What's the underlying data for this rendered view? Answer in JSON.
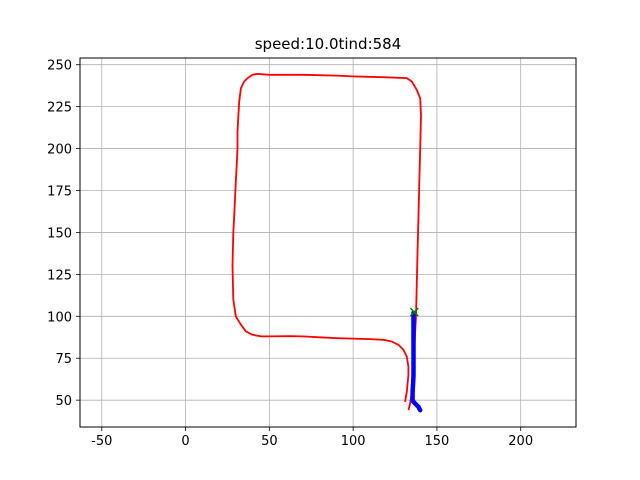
{
  "chart_data": {
    "type": "line",
    "title": "speed:10.0tind:584",
    "xlabel": "",
    "ylabel": "",
    "xlim": [
      -63,
      233
    ],
    "ylim": [
      34,
      254
    ],
    "xticks": [
      -50,
      0,
      50,
      100,
      150,
      200
    ],
    "yticks": [
      50,
      75,
      100,
      125,
      150,
      175,
      200,
      225,
      250
    ],
    "grid": true,
    "colors": {
      "course": "#ff0000",
      "trajectory": "#0000ff",
      "target": "#008000"
    },
    "series": [
      {
        "style": "red-line",
        "x": [
          133,
          134,
          135,
          136,
          136,
          136.5,
          137,
          137.5,
          138,
          138.5,
          139,
          139.5,
          140,
          140.5,
          140,
          138,
          135,
          132,
          120,
          100,
          90,
          70,
          60,
          50,
          43,
          40,
          37,
          35,
          33,
          32,
          31.5,
          31,
          31,
          30.5,
          30,
          29.5,
          29,
          28.5,
          28,
          28.5,
          30,
          33,
          36,
          40,
          45,
          50,
          62,
          70,
          80,
          90,
          100,
          110,
          118,
          123,
          127,
          130,
          132,
          133,
          133,
          132.5,
          132,
          131.5,
          131
        ],
        "y": [
          44,
          48,
          55,
          60,
          70,
          80,
          90,
          100,
          120,
          140,
          160,
          180,
          200,
          220,
          230,
          235,
          240,
          242,
          242.5,
          243,
          243.5,
          244,
          244,
          244,
          244.5,
          244,
          242,
          240,
          236,
          228,
          220,
          210,
          200,
          190,
          180,
          170,
          160,
          150,
          130,
          110,
          100,
          95,
          91,
          89,
          88,
          88,
          88.2,
          88,
          87.5,
          87,
          86.7,
          86.4,
          86,
          85,
          83,
          80,
          76,
          70,
          65,
          60,
          55,
          52,
          49
        ]
      },
      {
        "style": "blue-line",
        "x": [
          140,
          139.5,
          139,
          138,
          137,
          136,
          135.5,
          135.5,
          135.8,
          136,
          136,
          136,
          136,
          136,
          136
        ],
        "y": [
          44,
          45,
          46,
          47,
          48,
          49,
          50,
          55,
          60,
          65,
          70,
          76,
          85,
          95,
          102
        ]
      },
      {
        "style": "green-x-marker",
        "x": [
          136.5
        ],
        "y": [
          102.5
        ]
      }
    ]
  }
}
